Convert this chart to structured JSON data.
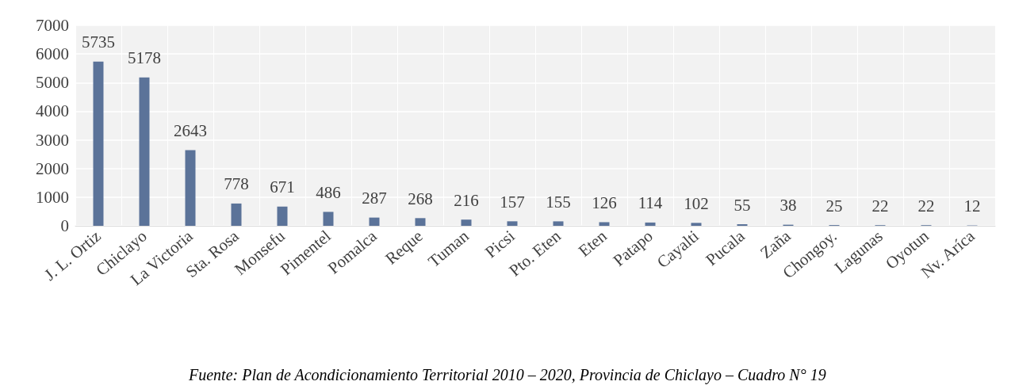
{
  "chart_data": {
    "type": "bar",
    "categories": [
      "J. L. Ortiz",
      "Chiclayo",
      "La Victoria",
      "Sta. Rosa",
      "Monsefu",
      "Pimentel",
      "Pomalca",
      "Reque",
      "Tuman",
      "Picsi",
      "Pto. Eten",
      "Eten",
      "Patapo",
      "Cayalti",
      "Pucala",
      "Zaña",
      "Chongoy.",
      "Lagunas",
      "Oyotun",
      "Nv. Aríca"
    ],
    "values": [
      5735,
      5178,
      2643,
      778,
      671,
      486,
      287,
      268,
      216,
      157,
      155,
      126,
      114,
      102,
      55,
      38,
      25,
      22,
      22,
      12
    ],
    "color": "#5b7399",
    "ylim": [
      0,
      7000
    ],
    "yticks": [
      0,
      1000,
      2000,
      3000,
      4000,
      5000,
      6000,
      7000
    ],
    "grid": true,
    "data_labels": true,
    "annotations": [
      "Fuente: Plan de Acondicionamiento Territorial 2010 – 2020, Provincia de Chiclayo – Cuadro N° 19"
    ]
  }
}
